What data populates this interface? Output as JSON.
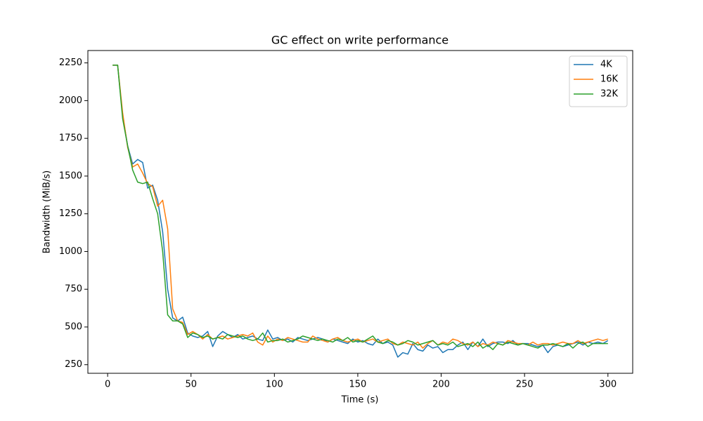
{
  "chart_data": {
    "type": "line",
    "title": "GC effect on write performance",
    "x_label": "Time (s)",
    "y_label": "Bandwidth (MiB/s)",
    "x": [
      3,
      6,
      9,
      12,
      15,
      18,
      21,
      24,
      27,
      30,
      33,
      36,
      39,
      42,
      45,
      48,
      51,
      54,
      57,
      60,
      63,
      66,
      69,
      72,
      75,
      78,
      81,
      84,
      87,
      90,
      93,
      96,
      99,
      102,
      105,
      108,
      111,
      114,
      117,
      120,
      123,
      126,
      129,
      132,
      135,
      138,
      141,
      144,
      147,
      150,
      153,
      156,
      159,
      162,
      165,
      168,
      171,
      174,
      177,
      180,
      183,
      186,
      189,
      192,
      195,
      198,
      201,
      204,
      207,
      210,
      213,
      216,
      219,
      222,
      225,
      228,
      231,
      234,
      237,
      240,
      243,
      246,
      249,
      252,
      255,
      258,
      261,
      264,
      267,
      270,
      273,
      276,
      279,
      282,
      285,
      288,
      291,
      294,
      297,
      300
    ],
    "series": [
      {
        "name": "4K",
        "color": "#1f77b4",
        "values": [
          2235,
          2235,
          1900,
          1700,
          1580,
          1610,
          1590,
          1420,
          1440,
          1340,
          1130,
          750,
          560,
          540,
          565,
          460,
          440,
          430,
          440,
          470,
          370,
          440,
          470,
          450,
          430,
          450,
          420,
          430,
          440,
          420,
          410,
          480,
          420,
          430,
          410,
          420,
          400,
          430,
          420,
          410,
          420,
          430,
          420,
          400,
          420,
          410,
          400,
          390,
          420,
          400,
          410,
          390,
          380,
          420,
          390,
          400,
          380,
          300,
          330,
          320,
          390,
          350,
          340,
          380,
          360,
          370,
          330,
          350,
          350,
          380,
          400,
          350,
          400,
          370,
          420,
          370,
          390,
          400,
          400,
          390,
          410,
          380,
          390,
          390,
          380,
          370,
          380,
          330,
          370,
          380,
          370,
          380,
          390,
          400,
          380,
          400,
          390,
          400,
          390,
          410
        ]
      },
      {
        "name": "16K",
        "color": "#ff7f0e",
        "values": [
          2235,
          2235,
          1920,
          1690,
          1560,
          1580,
          1520,
          1450,
          1430,
          1300,
          1340,
          1150,
          620,
          540,
          530,
          450,
          470,
          450,
          420,
          450,
          420,
          430,
          440,
          420,
          430,
          440,
          450,
          440,
          460,
          400,
          380,
          440,
          400,
          420,
          410,
          430,
          420,
          410,
          400,
          400,
          440,
          420,
          410,
          400,
          420,
          430,
          410,
          400,
          410,
          420,
          400,
          410,
          420,
          400,
          410,
          420,
          390,
          380,
          400,
          390,
          380,
          400,
          360,
          390,
          410,
          380,
          400,
          390,
          420,
          410,
          390,
          380,
          400,
          370,
          390,
          380,
          400,
          390,
          380,
          410,
          400,
          390,
          390,
          380,
          400,
          380,
          390,
          390,
          380,
          390,
          400,
          390,
          390,
          410,
          390,
          400,
          410,
          420,
          410,
          420
        ]
      },
      {
        "name": "32K",
        "color": "#2ca02c",
        "values": [
          2235,
          2235,
          1880,
          1700,
          1540,
          1460,
          1450,
          1460,
          1350,
          1250,
          1000,
          580,
          540,
          540,
          520,
          430,
          460,
          450,
          430,
          440,
          420,
          430,
          420,
          450,
          440,
          430,
          440,
          420,
          410,
          420,
          460,
          400,
          410,
          410,
          420,
          400,
          410,
          420,
          440,
          430,
          420,
          410,
          420,
          410,
          400,
          420,
          410,
          430,
          400,
          410,
          400,
          420,
          440,
          400,
          390,
          410,
          400,
          380,
          390,
          410,
          400,
          380,
          390,
          400,
          410,
          380,
          390,
          380,
          400,
          370,
          380,
          390,
          370,
          400,
          360,
          380,
          350,
          390,
          380,
          400,
          390,
          380,
          390,
          380,
          370,
          360,
          380,
          380,
          390,
          380,
          370,
          390,
          360,
          390,
          400,
          370,
          390,
          390,
          390,
          390
        ]
      }
    ],
    "xlim": [
      -11.85,
      314.85
    ],
    "ylim": [
      193,
      2332
    ],
    "xticks": [
      0,
      50,
      100,
      150,
      200,
      250,
      300
    ],
    "yticks": [
      250,
      500,
      750,
      1000,
      1250,
      1500,
      1750,
      2000,
      2250
    ],
    "legend": "upper right",
    "grid": false
  }
}
